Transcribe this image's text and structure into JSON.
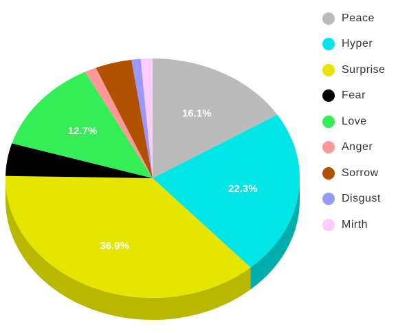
{
  "chart_data": {
    "type": "pie",
    "title": "",
    "style": "3d",
    "legend_position": "right",
    "slices": [
      {
        "label": "Peace",
        "value": 16.1,
        "value_label": "16.1%",
        "color": "#bbbbbb",
        "side_color": "#8c8c8c"
      },
      {
        "label": "Hyper",
        "value": 22.3,
        "value_label": "22.3%",
        "color": "#00e5e5",
        "side_color": "#00adad"
      },
      {
        "label": "Surprise",
        "value": 36.9,
        "value_label": "36.9%",
        "color": "#e5e500",
        "side_color": "#b8b800"
      },
      {
        "label": "Fear",
        "value": 4.4,
        "value_label": "",
        "color": "#000000",
        "side_color": "#000000"
      },
      {
        "label": "Love",
        "value": 12.7,
        "value_label": "12.7%",
        "color": "#33ee55",
        "side_color": "#22b040"
      },
      {
        "label": "Anger",
        "value": 1.3,
        "value_label": "",
        "color": "#ff9999",
        "side_color": "#cc7070"
      },
      {
        "label": "Sorrow",
        "value": 4.0,
        "value_label": "",
        "color": "#b05000",
        "side_color": "#803a00"
      },
      {
        "label": "Disgust",
        "value": 1.0,
        "value_label": "",
        "color": "#9999ff",
        "side_color": "#7070cc"
      },
      {
        "label": "Mirth",
        "value": 1.3,
        "value_label": "",
        "color": "#ffccff",
        "side_color": "#cc99cc"
      }
    ]
  }
}
